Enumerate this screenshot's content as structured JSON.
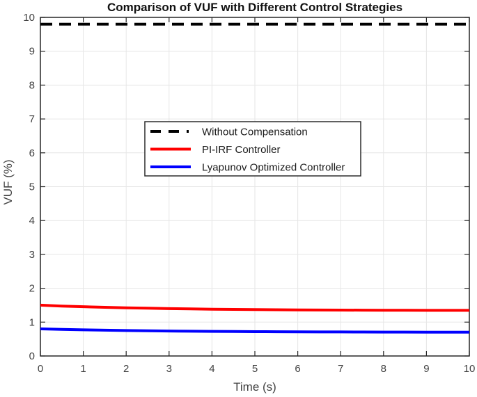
{
  "chart_data": {
    "type": "line",
    "title": "Comparison of VUF with Different Control Strategies",
    "xlabel": "Time (s)",
    "ylabel": "VUF (%)",
    "xlim": [
      0,
      10
    ],
    "ylim": [
      0,
      10
    ],
    "xticks": [
      0,
      1,
      2,
      3,
      4,
      5,
      6,
      7,
      8,
      9,
      10
    ],
    "yticks": [
      0,
      1,
      2,
      3,
      4,
      5,
      6,
      7,
      8,
      9,
      10
    ],
    "grid": true,
    "legend": {
      "position": "upper-center-left-inside",
      "border": true,
      "entries": [
        "Without Compensation",
        "PI-IRF Controller",
        "Lyapunov Optimized Controller"
      ]
    },
    "colors": {
      "grid": "#e6e6e6",
      "axis": "#262626",
      "tick_label": "#424242",
      "background": "#ffffff",
      "without_compensation": "#000000",
      "pi_irf": "#ff0000",
      "lyapunov": "#0000ff"
    },
    "series": [
      {
        "name": "Without Compensation",
        "color": "#000000",
        "line_style": "dashed",
        "line_width": 4,
        "x": [
          0,
          10
        ],
        "y": [
          9.8,
          9.8
        ]
      },
      {
        "name": "PI-IRF Controller",
        "color": "#ff0000",
        "line_style": "solid",
        "line_width": 4,
        "x": [
          0,
          0.5,
          1,
          1.5,
          2,
          2.5,
          3,
          3.5,
          4,
          4.5,
          5,
          5.5,
          6,
          6.5,
          7,
          7.5,
          8,
          8.5,
          9,
          9.5,
          10
        ],
        "y": [
          1.5,
          1.475,
          1.455,
          1.437,
          1.422,
          1.41,
          1.399,
          1.39,
          1.382,
          1.376,
          1.37,
          1.366,
          1.362,
          1.358,
          1.356,
          1.353,
          1.351,
          1.349,
          1.348,
          1.347,
          1.346
        ]
      },
      {
        "name": "Lyapunov Optimized Controller",
        "color": "#0000ff",
        "line_style": "solid",
        "line_width": 4,
        "x": [
          0,
          0.5,
          1,
          1.5,
          2,
          2.5,
          3,
          3.5,
          4,
          4.5,
          5,
          5.5,
          6,
          6.5,
          7,
          7.5,
          8,
          8.5,
          9,
          9.5,
          10
        ],
        "y": [
          0.8,
          0.785,
          0.772,
          0.761,
          0.751,
          0.743,
          0.737,
          0.731,
          0.726,
          0.722,
          0.719,
          0.716,
          0.714,
          0.711,
          0.71,
          0.708,
          0.707,
          0.706,
          0.705,
          0.704,
          0.704
        ]
      }
    ]
  }
}
